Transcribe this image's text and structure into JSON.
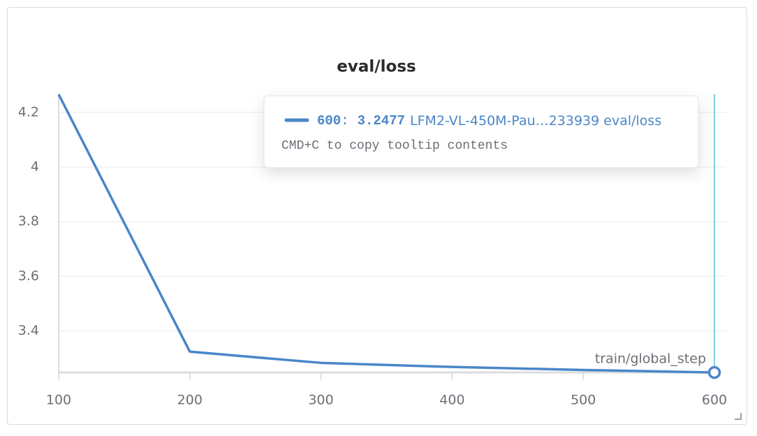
{
  "chart_data": {
    "type": "line",
    "title": "eval/loss",
    "x_label": "train/global_step",
    "x": [
      100,
      200,
      300,
      400,
      500,
      600
    ],
    "series": [
      {
        "name": "LFM2-VL-450M-Pau…233939 eval/loss",
        "color": "#4a86c8",
        "values": [
          4.266,
          3.324,
          3.283,
          3.268,
          3.257,
          3.2477
        ]
      }
    ],
    "xlim": [
      100,
      600
    ],
    "xticks": [
      100,
      200,
      300,
      400,
      500,
      600
    ],
    "ylim": [
      3.248,
      4.266
    ],
    "yticks": [
      3.4,
      3.6,
      3.8,
      4,
      4.2
    ],
    "grid": true,
    "tooltip": {
      "separator": ":",
      "hint": "CMD+C to copy tooltip contents"
    }
  }
}
